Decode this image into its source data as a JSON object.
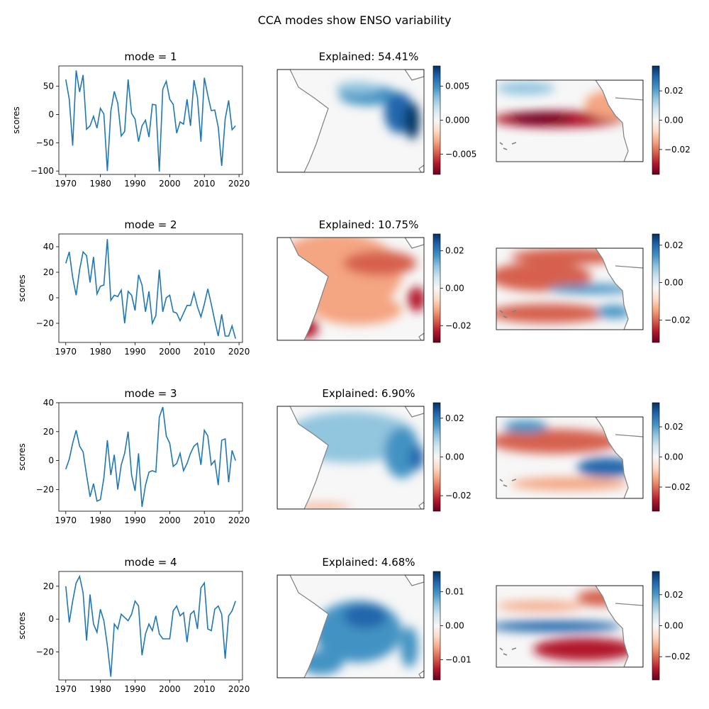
{
  "suptitle": "CCA modes show ENSO variability",
  "colormap": {
    "name": "RdBu",
    "low": "#67001f",
    "mid": "#f7f7f7",
    "high": "#053061"
  },
  "line_color": "#1f77b4",
  "coast_color": "#808080",
  "chart_data": [
    {
      "type": "line",
      "title": "mode = 1",
      "ylabel": "scores",
      "xlim": [
        1968,
        2021
      ],
      "ylim": [
        -106,
        86
      ],
      "xticks": [
        1970,
        1980,
        1990,
        2000,
        2010,
        2020
      ],
      "yticks": [
        -100,
        -50,
        0,
        50
      ],
      "x": [
        1970,
        1971,
        1972,
        1973,
        1974,
        1975,
        1976,
        1977,
        1978,
        1979,
        1980,
        1981,
        1982,
        1983,
        1984,
        1985,
        1986,
        1987,
        1988,
        1989,
        1990,
        1991,
        1992,
        1993,
        1994,
        1995,
        1996,
        1997,
        1998,
        1999,
        2000,
        2001,
        2002,
        2003,
        2004,
        2005,
        2006,
        2007,
        2008,
        2009,
        2010,
        2011,
        2012,
        2013,
        2014,
        2015,
        2016,
        2017,
        2018,
        2019
      ],
      "values": [
        62,
        27,
        -55,
        78,
        40,
        70,
        -26,
        -20,
        -3,
        -24,
        11,
        1,
        -100,
        6,
        41,
        20,
        -38,
        -30,
        62,
        2,
        -8,
        -48,
        -20,
        -10,
        -40,
        18,
        17,
        -101,
        45,
        59,
        27,
        18,
        -33,
        -13,
        -17,
        27,
        -20,
        61,
        30,
        -48,
        65,
        34,
        7,
        8,
        -22,
        -91,
        -8,
        25,
        -27,
        -20
      ]
    },
    {
      "type": "heatmap",
      "title": "Explained: 54.41%",
      "region": "south-atlantic",
      "colorbar": {
        "min": -0.008,
        "max": 0.008,
        "ticks": [
          -0.005,
          0.0,
          0.005
        ],
        "tick_labels": [
          "−0.005",
          "0.000",
          "0.005"
        ]
      }
    },
    {
      "type": "heatmap",
      "title": "",
      "region": "tropical-pacific",
      "colorbar": {
        "min": -0.037,
        "max": 0.037,
        "ticks": [
          -0.02,
          0.0,
          0.02
        ],
        "tick_labels": [
          "−0.02",
          "0.00",
          "0.02"
        ]
      }
    },
    {
      "type": "line",
      "title": "mode = 2",
      "ylabel": "scores",
      "xlim": [
        1968,
        2021
      ],
      "ylim": [
        -35,
        50
      ],
      "xticks": [
        1970,
        1980,
        1990,
        2000,
        2010,
        2020
      ],
      "yticks": [
        -20,
        0,
        20,
        40
      ],
      "x": [
        1970,
        1971,
        1972,
        1973,
        1974,
        1975,
        1976,
        1977,
        1978,
        1979,
        1980,
        1981,
        1982,
        1983,
        1984,
        1985,
        1986,
        1987,
        1988,
        1989,
        1990,
        1991,
        1992,
        1993,
        1994,
        1995,
        1996,
        1997,
        1998,
        1999,
        2000,
        2001,
        2002,
        2003,
        2004,
        2005,
        2006,
        2007,
        2008,
        2009,
        2010,
        2011,
        2012,
        2013,
        2014,
        2015,
        2016,
        2017,
        2018,
        2019
      ],
      "values": [
        27,
        36,
        16,
        2,
        22,
        36,
        33,
        12,
        32,
        3,
        9,
        10,
        46,
        -2,
        2,
        1,
        6,
        -20,
        5,
        2,
        -10,
        18,
        10,
        -11,
        5,
        -20,
        -14,
        22,
        -11,
        0,
        2,
        -11,
        -12,
        -18,
        -12,
        -6,
        -6,
        4,
        -7,
        -15,
        -5,
        7,
        -5,
        -18,
        -30,
        -13,
        -30,
        -30,
        -22,
        -32
      ]
    },
    {
      "type": "heatmap",
      "title": "Explained: 10.75%",
      "region": "south-atlantic",
      "colorbar": {
        "min": -0.029,
        "max": 0.029,
        "ticks": [
          -0.02,
          0.0,
          0.02
        ],
        "tick_labels": [
          "−0.02",
          "0.00",
          "0.02"
        ]
      }
    },
    {
      "type": "heatmap",
      "title": "",
      "region": "tropical-pacific",
      "colorbar": {
        "min": -0.032,
        "max": 0.026,
        "ticks": [
          -0.02,
          0.0,
          0.02
        ],
        "tick_labels": [
          "−0.02",
          "0.00",
          "0.02"
        ]
      }
    },
    {
      "type": "line",
      "title": "mode = 3",
      "ylabel": "scores",
      "xlim": [
        1968,
        2021
      ],
      "ylim": [
        -35,
        40
      ],
      "xticks": [
        1970,
        1980,
        1990,
        2000,
        2010,
        2020
      ],
      "yticks": [
        -20,
        0,
        20,
        40
      ],
      "x": [
        1970,
        1971,
        1972,
        1973,
        1974,
        1975,
        1976,
        1977,
        1978,
        1979,
        1980,
        1981,
        1982,
        1983,
        1984,
        1985,
        1986,
        1987,
        1988,
        1989,
        1990,
        1991,
        1992,
        1993,
        1994,
        1995,
        1996,
        1997,
        1998,
        1999,
        2000,
        2001,
        2002,
        2003,
        2004,
        2005,
        2006,
        2007,
        2008,
        2009,
        2010,
        2011,
        2012,
        2013,
        2014,
        2015,
        2016,
        2017,
        2018,
        2019
      ],
      "values": [
        -6,
        1,
        12,
        21,
        10,
        6,
        -10,
        -25,
        -16,
        -28,
        -27,
        -12,
        14,
        -10,
        4,
        -20,
        -3,
        5,
        20,
        -10,
        -21,
        5,
        -32,
        -17,
        -8,
        -7,
        -8,
        30,
        37,
        17,
        12,
        -4,
        -2,
        5,
        -7,
        -2,
        5,
        10,
        12,
        -3,
        21,
        17,
        -3,
        0,
        -17,
        14,
        15,
        -15,
        7,
        0
      ]
    },
    {
      "type": "heatmap",
      "title": "Explained: 6.90%",
      "region": "south-atlantic",
      "colorbar": {
        "min": -0.028,
        "max": 0.028,
        "ticks": [
          -0.02,
          0.0,
          0.02
        ],
        "tick_labels": [
          "−0.02",
          "0.00",
          "0.02"
        ]
      }
    },
    {
      "type": "heatmap",
      "title": "",
      "region": "tropical-pacific",
      "colorbar": {
        "min": -0.036,
        "max": 0.036,
        "ticks": [
          -0.02,
          0.0,
          0.02
        ],
        "tick_labels": [
          "−0.02",
          "0.00",
          "0.02"
        ]
      }
    },
    {
      "type": "line",
      "title": "mode = 4",
      "ylabel": "scores",
      "xlim": [
        1968,
        2021
      ],
      "ylim": [
        -37,
        29
      ],
      "xticks": [
        1970,
        1980,
        1990,
        2000,
        2010,
        2020
      ],
      "yticks": [
        -20,
        0,
        20
      ],
      "x": [
        1970,
        1971,
        1972,
        1973,
        1974,
        1975,
        1976,
        1977,
        1978,
        1979,
        1980,
        1981,
        1982,
        1983,
        1984,
        1985,
        1986,
        1987,
        1988,
        1989,
        1990,
        1991,
        1992,
        1993,
        1994,
        1995,
        1996,
        1997,
        1998,
        1999,
        2000,
        2001,
        2002,
        2003,
        2004,
        2005,
        2006,
        2007,
        2008,
        2009,
        2010,
        2011,
        2012,
        2013,
        2014,
        2015,
        2016,
        2017,
        2018,
        2019
      ],
      "values": [
        20,
        -2,
        11,
        22,
        26,
        16,
        -13,
        15,
        -3,
        -8,
        6,
        -1,
        -16,
        -35,
        -3,
        -6,
        3,
        1,
        -1,
        3,
        11,
        8,
        -22,
        -9,
        -3,
        -7,
        2,
        -9,
        -12,
        -12,
        -12,
        5,
        8,
        2,
        4,
        -14,
        3,
        5,
        -6,
        19,
        22,
        -6,
        -7,
        6,
        8,
        3,
        -24,
        2,
        5,
        11
      ]
    },
    {
      "type": "heatmap",
      "title": "Explained: 4.68%",
      "region": "south-atlantic",
      "colorbar": {
        "min": -0.016,
        "max": 0.016,
        "ticks": [
          -0.01,
          0.0,
          0.01
        ],
        "tick_labels": [
          "−0.01",
          "0.00",
          "0.01"
        ]
      }
    },
    {
      "type": "heatmap",
      "title": "",
      "region": "tropical-pacific",
      "colorbar": {
        "min": -0.035,
        "max": 0.035,
        "ticks": [
          -0.02,
          0.0,
          0.02
        ],
        "tick_labels": [
          "−0.02",
          "0.00",
          "0.02"
        ]
      }
    }
  ]
}
